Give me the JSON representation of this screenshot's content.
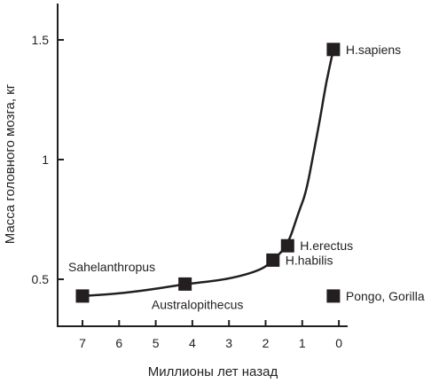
{
  "chart_data": {
    "type": "line",
    "xlabel": "Миллионы лет назад",
    "ylabel": "Масса головного мозга, кг",
    "x_reversed": true,
    "xlim": [
      7.6,
      -0.2
    ],
    "ylim": [
      0.4,
      1.5
    ],
    "grid": false,
    "x_ticks": [
      {
        "value": 7,
        "label": "7"
      },
      {
        "value": 6,
        "label": "6"
      },
      {
        "value": 5,
        "label": "5"
      },
      {
        "value": 4,
        "label": "4"
      },
      {
        "value": 3,
        "label": "3"
      },
      {
        "value": 2,
        "label": "2"
      },
      {
        "value": 1,
        "label": "1"
      },
      {
        "value": 0,
        "label": "0"
      }
    ],
    "y_ticks": [
      {
        "value": 0.5,
        "label": "0.5"
      },
      {
        "value": 1,
        "label": "1"
      },
      {
        "value": 1.5,
        "label": "1.5"
      }
    ],
    "curve": {
      "x": [
        7,
        6,
        5,
        4.2,
        3,
        2.1,
        1.8,
        1.4,
        1.1,
        0.9,
        0.7,
        0.5,
        0.35,
        0.15
      ],
      "y": [
        0.43,
        0.44,
        0.46,
        0.48,
        0.5,
        0.54,
        0.58,
        0.64,
        0.78,
        0.86,
        1.02,
        1.18,
        1.32,
        1.46
      ]
    },
    "points": [
      {
        "name": "Sahelanthropus",
        "x": 7,
        "y": 0.43,
        "label_pos": "above"
      },
      {
        "name": "Australopithecus",
        "x": 4.2,
        "y": 0.48,
        "label_pos": "below"
      },
      {
        "name": "H.habilis",
        "x": 1.8,
        "y": 0.58,
        "label_pos": "right"
      },
      {
        "name": "H.erectus",
        "x": 1.4,
        "y": 0.64,
        "label_pos": "right"
      },
      {
        "name": "H.sapiens",
        "x": 0.15,
        "y": 1.46,
        "label_pos": "right"
      },
      {
        "name": "Pongo, Gorilla",
        "x": 0.15,
        "y": 0.43,
        "label_pos": "right",
        "on_curve": false
      }
    ]
  }
}
